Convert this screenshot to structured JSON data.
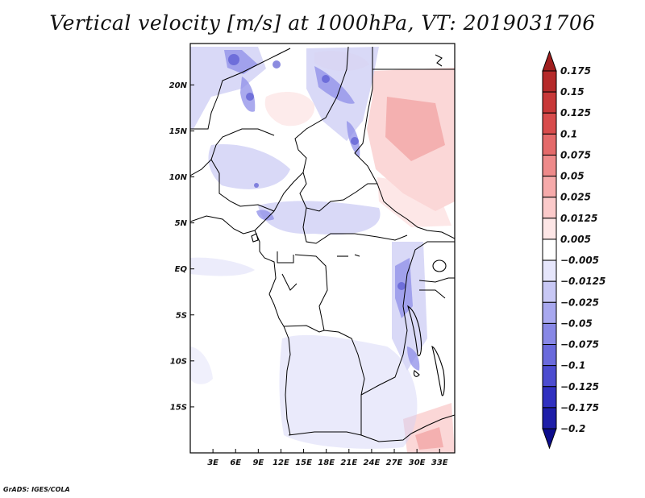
{
  "title": "Vertical velocity [m/s] at 1000hPa, VT: 2019031706",
  "credit": "GrADS: IGES/COLA",
  "map": {
    "lat_labels": [
      "20N",
      "15N",
      "10N",
      "5N",
      "EQ",
      "5S",
      "10S",
      "15S"
    ],
    "lat_values": [
      20,
      15,
      10,
      5,
      0,
      -5,
      -10,
      -15
    ],
    "lon_labels": [
      "3E",
      "6E",
      "9E",
      "12E",
      "15E",
      "18E",
      "21E",
      "24E",
      "27E",
      "30E",
      "33E"
    ],
    "lon_values": [
      3,
      6,
      9,
      12,
      15,
      18,
      21,
      24,
      27,
      30,
      33
    ],
    "lon_range": [
      0,
      35
    ],
    "lat_range": [
      -20,
      24.5
    ]
  },
  "colorbar": {
    "labels": [
      "0.175",
      "0.15",
      "0.125",
      "0.1",
      "0.075",
      "0.05",
      "0.025",
      "0.0125",
      "0.005",
      "−0.005",
      "−0.0125",
      "−0.025",
      "−0.05",
      "−0.075",
      "−0.1",
      "−0.125",
      "−0.175",
      "−0.2"
    ],
    "colors": [
      "#a01e1e",
      "#b52a2a",
      "#c83838",
      "#d84c4c",
      "#e46a6a",
      "#ee8a8a",
      "#f6aaaa",
      "#fbcaca",
      "#fde6e6",
      "#ffffff",
      "#e6e6fb",
      "#c8c8f5",
      "#a8a8ef",
      "#8888e6",
      "#6a6adc",
      "#4c4cd0",
      "#3030c0",
      "#1e1ea8",
      "#0c0c8c"
    ]
  }
}
